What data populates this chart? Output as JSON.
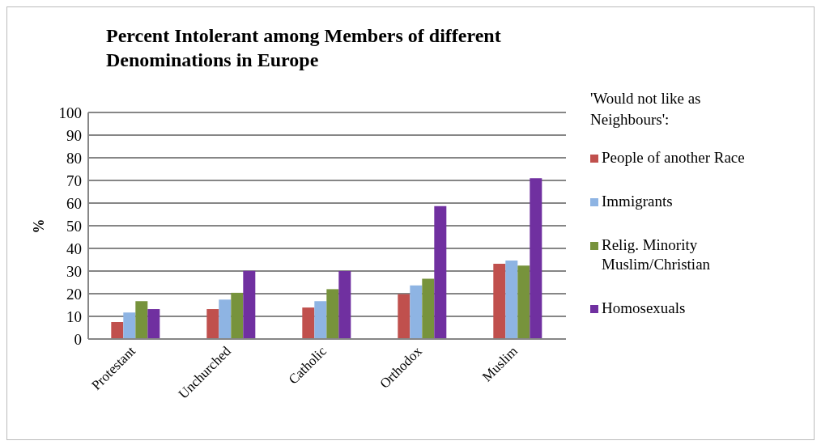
{
  "chart_data": {
    "type": "bar",
    "title": "Percent Intolerant among Members of  different Denominations  in Europe",
    "ylabel": "%",
    "legend_title": "'Would not like as Neighbours':",
    "categories": [
      "Protestant",
      "Unchurched",
      "Catholic",
      "Orthodox",
      "Muslim"
    ],
    "series": [
      {
        "name": "People of another Race",
        "color": "#c0504d",
        "values": [
          7.5,
          13.2,
          13.9,
          19.8,
          33.2
        ]
      },
      {
        "name": "Immigrants",
        "color": "#8eb4e3",
        "values": [
          11.7,
          17.4,
          16.7,
          23.7,
          34.6
        ]
      },
      {
        "name": "Relig. Minority Muslim/Christian",
        "color": "#77933c",
        "values": [
          16.7,
          20.4,
          22,
          26.6,
          32.4
        ]
      },
      {
        "name": "Homosexuals",
        "color": "#7030a0",
        "values": [
          13.2,
          30.1,
          30,
          58.7,
          71
        ]
      }
    ],
    "ylim": [
      0,
      100
    ],
    "yticks": [
      0,
      10,
      20,
      30,
      40,
      50,
      60,
      70,
      80,
      90,
      100
    ],
    "grid": "y",
    "legend": "right"
  }
}
